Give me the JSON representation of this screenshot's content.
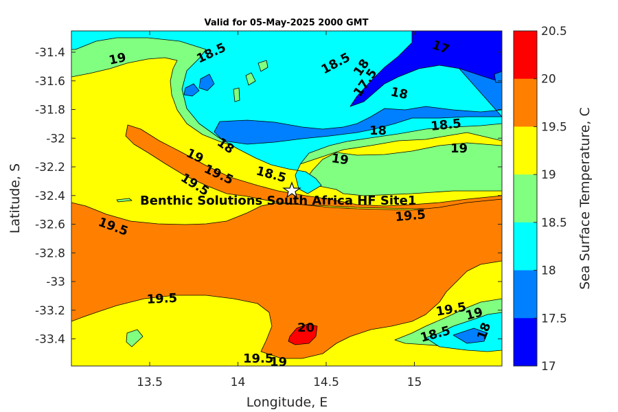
{
  "title": "Valid for 05-May-2025 2000 GMT",
  "x_axis": {
    "label": "Longitude, E",
    "ticks": [
      "13.5",
      "14",
      "14.5",
      "15"
    ]
  },
  "y_axis": {
    "label": "Latitude, S",
    "ticks": [
      "-31.4",
      "-31.6",
      "-31.8",
      "-32",
      "-32.2",
      "-32.4",
      "-32.6",
      "-32.8",
      "-33",
      "-33.2",
      "-33.4"
    ]
  },
  "colorbar": {
    "label": "Sea Surface Temperature, C",
    "ticks": [
      "20.5",
      "20",
      "19.5",
      "19",
      "18.5",
      "18",
      "17.5",
      "17"
    ],
    "colors": [
      "#ff0000",
      "#ff8000",
      "#ffff00",
      "#80ff80",
      "#00ffff",
      "#0080ff",
      "#0000ff"
    ]
  },
  "site": {
    "label": "Benthic Solutions South Africa HF Site1",
    "marker": "star-icon"
  },
  "contour_labels": [
    "19",
    "18.5",
    "18.5",
    "18",
    "17.5",
    "17",
    "18",
    "18",
    "18.5",
    "19",
    "19",
    "18",
    "19",
    "19.5",
    "18.5",
    "19.5",
    "19.5",
    "19.5",
    "19.5",
    "19.5",
    "20",
    "19.5",
    "19",
    "18.5",
    "19",
    "18",
    "19.5",
    "19"
  ]
}
